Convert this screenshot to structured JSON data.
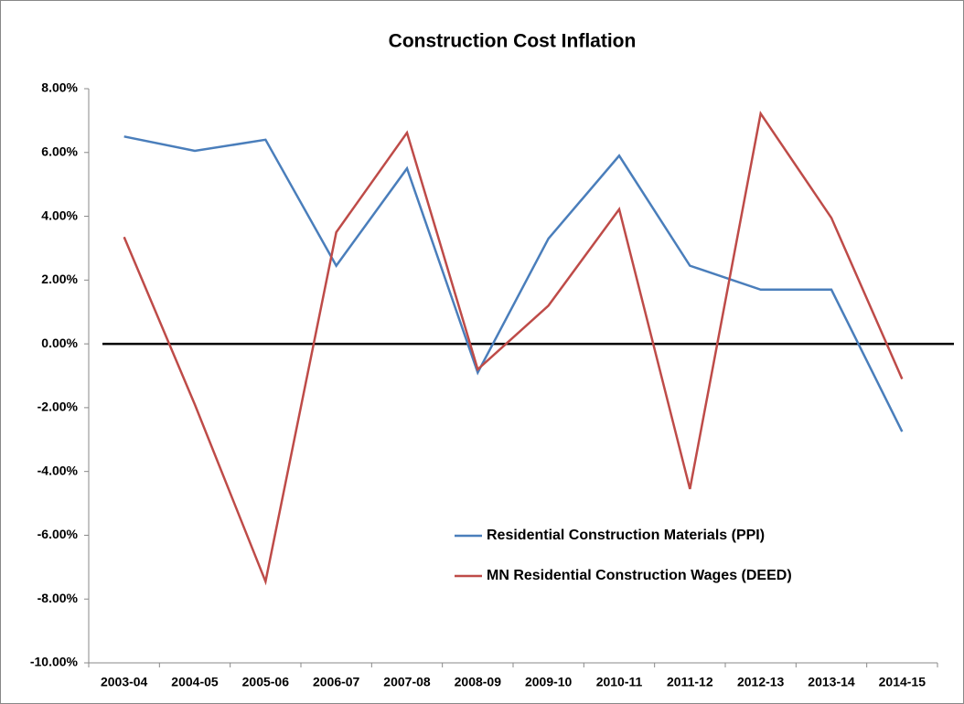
{
  "chart_data": {
    "type": "line",
    "title": "Construction Cost Inflation",
    "categories": [
      "2003-04",
      "2004-05",
      "2005-06",
      "2006-07",
      "2007-08",
      "2008-09",
      "2009-10",
      "2010-11",
      "2011-12",
      "2012-13",
      "2013-14",
      "2014-15"
    ],
    "series": [
      {
        "name": "Residential Construction Materials (PPI)",
        "color": "#4a7ebb",
        "values": [
          6.5,
          6.05,
          6.4,
          2.45,
          5.5,
          -0.9,
          3.3,
          5.9,
          2.45,
          1.7,
          1.7,
          -2.75
        ]
      },
      {
        "name": "MN Residential Construction Wages (DEED)",
        "color": "#be4b48",
        "values": [
          3.35,
          -1.9,
          -7.45,
          3.5,
          6.62,
          -0.8,
          1.2,
          4.22,
          -4.55,
          7.22,
          3.95,
          -1.1
        ]
      }
    ],
    "ylim": [
      -10,
      8
    ],
    "yticks": [
      {
        "value": -10,
        "label": "-10.00%"
      },
      {
        "value": -8,
        "label": "-8.00%"
      },
      {
        "value": -6,
        "label": "-6.00%"
      },
      {
        "value": -4,
        "label": "-4.00%"
      },
      {
        "value": -2,
        "label": "-2.00%"
      },
      {
        "value": 0,
        "label": "0.00%"
      },
      {
        "value": 2,
        "label": "2.00%"
      },
      {
        "value": 4,
        "label": "4.00%"
      },
      {
        "value": 6,
        "label": "6.00%"
      },
      {
        "value": 8,
        "label": "8.00%"
      }
    ],
    "grid": false
  }
}
